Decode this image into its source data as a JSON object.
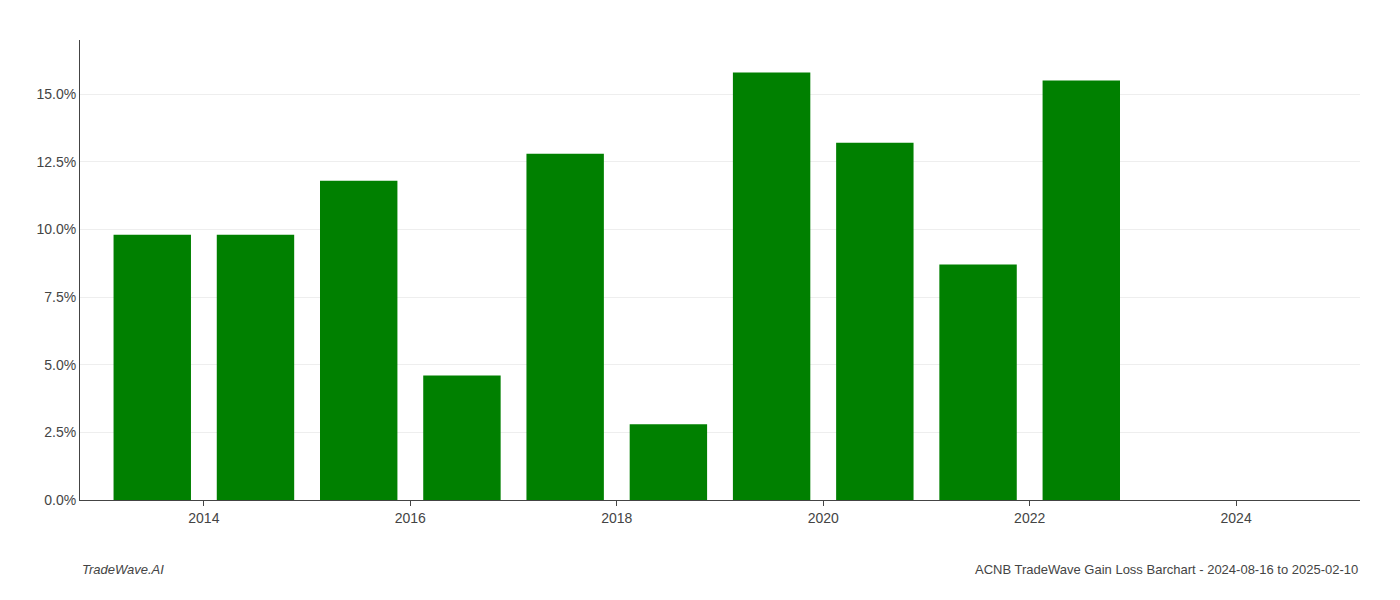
{
  "chart_data": {
    "type": "bar",
    "x": [
      2013.5,
      2014.5,
      2015.5,
      2016.5,
      2017.5,
      2018.5,
      2019.5,
      2020.5,
      2021.5,
      2022.5
    ],
    "values": [
      0.098,
      0.098,
      0.118,
      0.046,
      0.128,
      0.028,
      0.158,
      0.132,
      0.087,
      0.155
    ],
    "color": "#008000",
    "xlim": [
      2012.8,
      2025.2
    ],
    "xticks": [
      2014,
      2016,
      2018,
      2020,
      2022,
      2024
    ],
    "ylim": [
      0.0,
      0.17
    ],
    "yticks": [
      {
        "value": 0.0,
        "label": "0.0%"
      },
      {
        "value": 0.025,
        "label": "2.5%"
      },
      {
        "value": 0.05,
        "label": "5.0%"
      },
      {
        "value": 0.075,
        "label": "7.5%"
      },
      {
        "value": 0.1,
        "label": "10.0%"
      },
      {
        "value": 0.125,
        "label": "12.5%"
      },
      {
        "value": 0.15,
        "label": "15.0%"
      }
    ],
    "grid": true,
    "annotations": [
      "TradeWave.AI",
      "ACNB TradeWave Gain Loss Barchart - 2024-08-16 to 2025-02-10"
    ]
  }
}
